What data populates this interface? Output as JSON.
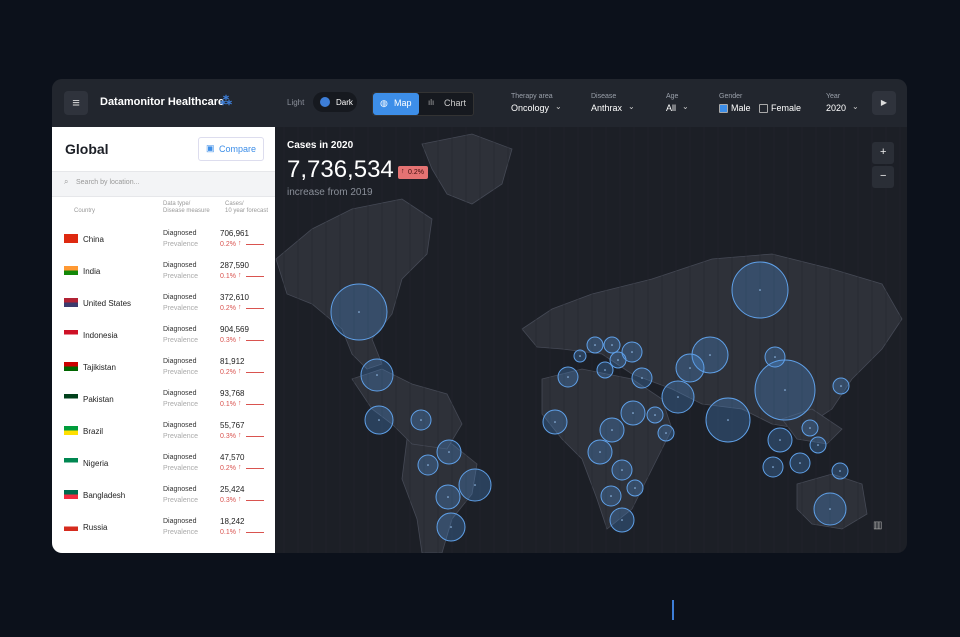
{
  "header": {
    "brand": "Datamonitor Healthcare",
    "theme_light": "Light",
    "theme_dark": "Dark",
    "view_map": "Map",
    "view_chart": "Chart",
    "filters": [
      {
        "label": "Therapy area",
        "value": "Oncology"
      },
      {
        "label": "Disease",
        "value": "Anthrax"
      },
      {
        "label": "Age",
        "value": "All"
      },
      {
        "label": "Year",
        "value": "2020"
      }
    ],
    "gender": {
      "label": "Gender",
      "options": [
        "Male",
        "Female"
      ]
    }
  },
  "sidebar": {
    "title": "Global",
    "compare": "Compare",
    "search": "Search by location...",
    "columns": {
      "country": "Country",
      "measure": [
        "Data type/",
        "Disease measure"
      ],
      "cases": [
        "Cases/",
        "10 year forecast"
      ]
    },
    "rows": [
      {
        "country": "China",
        "measure": "Diagnosed",
        "sub": "Prevalence",
        "cases": "706,961",
        "change": "0.2%"
      },
      {
        "country": "India",
        "measure": "Diagnosed",
        "sub": "Prevalence",
        "cases": "287,590",
        "change": "0.1%"
      },
      {
        "country": "United States",
        "measure": "Diagnosed",
        "sub": "Prevalence",
        "cases": "372,610",
        "change": "0.2%"
      },
      {
        "country": "Indonesia",
        "measure": "Diagnosed",
        "sub": "Prevalence",
        "cases": "904,569",
        "change": "0.3%"
      },
      {
        "country": "Tajikistan",
        "measure": "Diagnosed",
        "sub": "Prevalence",
        "cases": "81,912",
        "change": "0.2%"
      },
      {
        "country": "Pakistan",
        "measure": "Diagnosed",
        "sub": "Prevalence",
        "cases": "93,768",
        "change": "0.1%"
      },
      {
        "country": "Brazil",
        "measure": "Diagnosed",
        "sub": "Prevalence",
        "cases": "55,767",
        "change": "0.3%"
      },
      {
        "country": "Nigeria",
        "measure": "Diagnosed",
        "sub": "Prevalence",
        "cases": "47,570",
        "change": "0.2%"
      },
      {
        "country": "Bangladesh",
        "measure": "Diagnosed",
        "sub": "Prevalence",
        "cases": "25,424",
        "change": "0.3%"
      },
      {
        "country": "Russia",
        "measure": "Diagnosed",
        "sub": "Prevalence",
        "cases": "18,242",
        "change": "0.1%"
      }
    ]
  },
  "map": {
    "title": "Cases in 2020",
    "total": "7,736,534",
    "change": "0.2%",
    "subtitle": "increase from 2019",
    "zoom_in": "+",
    "zoom_out": "−"
  }
}
